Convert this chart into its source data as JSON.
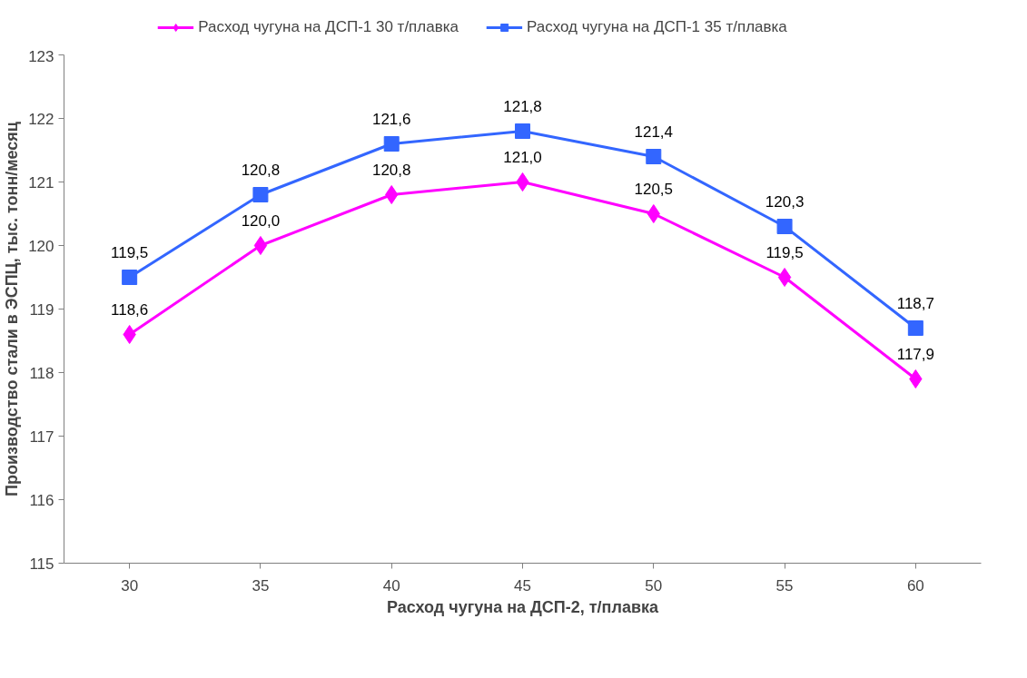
{
  "chart_data": {
    "type": "line",
    "xlabel": "Расход чугуна на ДСП-2, т/плавка",
    "ylabel": "Производство стали в ЭСПЦ, тыс. тонн/месяц",
    "categories": [
      "30",
      "35",
      "40",
      "45",
      "50",
      "55",
      "60"
    ],
    "series": [
      {
        "name": "Расход чугуна на ДСП-1 30 т/плавка",
        "color": "#ff00ff",
        "marker": "diamond",
        "values": [
          118.6,
          120.0,
          120.8,
          121.0,
          120.5,
          119.5,
          117.9
        ],
        "value_labels": [
          "118,6",
          "120,0",
          "120,8",
          "121,0",
          "120,5",
          "119,5",
          "117,9"
        ]
      },
      {
        "name": "Расход чугуна на ДСП-1 35 т/плавка",
        "color": "#3366ff",
        "marker": "square",
        "values": [
          119.5,
          120.8,
          121.6,
          121.8,
          121.4,
          120.3,
          118.7
        ],
        "value_labels": [
          "119,5",
          "120,8",
          "121,6",
          "121,8",
          "121,4",
          "120,3",
          "118,7"
        ]
      }
    ],
    "ylim": [
      115,
      123
    ],
    "yticks": [
      115,
      116,
      117,
      118,
      119,
      120,
      121,
      122,
      123
    ],
    "grid": false,
    "legend": "top",
    "line_style": "solid"
  }
}
